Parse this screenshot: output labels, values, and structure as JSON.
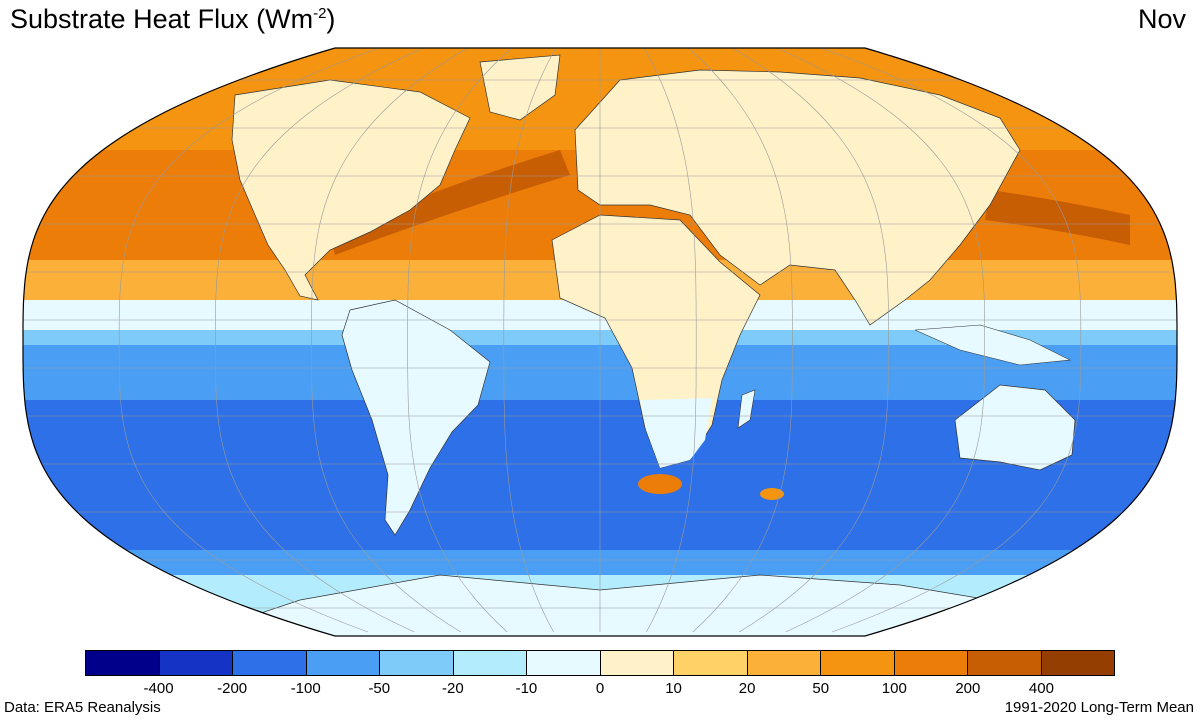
{
  "title": {
    "main": "Substrate Heat Flux (Wm",
    "exp": "-2",
    "close": ")"
  },
  "month": "Nov",
  "source": "Data: ERA5 Reanalysis",
  "period": "1991-2020 Long-Term Mean",
  "colorbar": {
    "colors": [
      "#00008b",
      "#1533c4",
      "#2e70e8",
      "#4a9ff5",
      "#7ecbfa",
      "#b3ecfc",
      "#e6faff",
      "#fff1c8",
      "#ffd268",
      "#fbb03a",
      "#f59410",
      "#ed7d09",
      "#c85e04",
      "#943e02"
    ],
    "labels": [
      "-400",
      "-200",
      "-100",
      "-50",
      "-20",
      "-10",
      "0",
      "10",
      "20",
      "50",
      "100",
      "200",
      "400"
    ]
  },
  "map": {
    "ocean_colors": {
      "arctic": "#f59410",
      "north_atlantic": "#ed7d09",
      "gulf_stream": "#c85e04",
      "subtropics_north": "#fbb03a",
      "equatorial": "#7ecbfa",
      "tropics_south": "#4a9ff5",
      "southern_mid": "#2e70e8",
      "southern_ocean": "#4a9ff5",
      "antarctic_sea": "#b3ecfc"
    },
    "land_colors": {
      "north": "#fff1c8",
      "tropics": "#e6faff",
      "antarctica": "#e6faff"
    }
  }
}
